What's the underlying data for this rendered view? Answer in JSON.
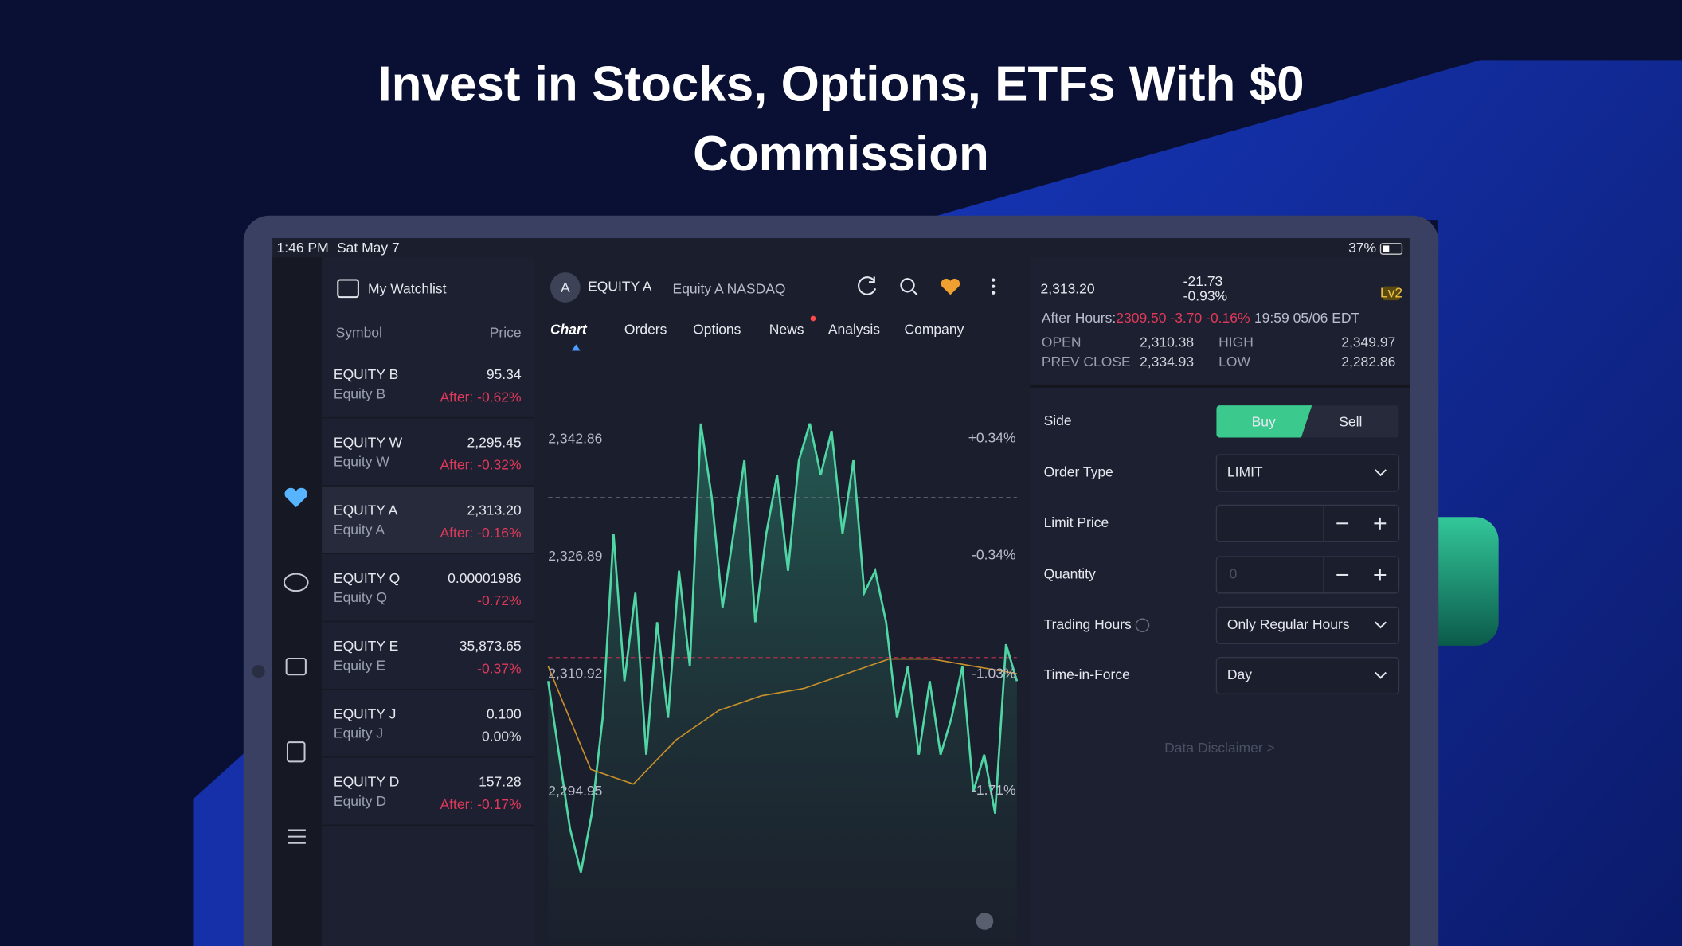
{
  "header": {
    "title": "Invest in Stocks, Options, ETFs With $0 Commission"
  },
  "status_bar": {
    "time": "1:46 PM",
    "date": "Sat May 7",
    "battery": "37%"
  },
  "watchlist": {
    "title": "My Watchlist",
    "columns": [
      "Symbol",
      "Price"
    ],
    "rows": [
      {
        "symbol": "EQUITY B",
        "name": "Equity B",
        "price": "95.34",
        "change": "After: -0.62%"
      },
      {
        "symbol": "EQUITY W",
        "name": "Equity W",
        "price": "2,295.45",
        "change": "After: -0.32%"
      },
      {
        "symbol": "EQUITY A",
        "name": "Equity A",
        "price": "2,313.20",
        "change": "After: -0.16%"
      },
      {
        "symbol": "EQUITY Q",
        "name": "Equity Q",
        "price": "0.00001986",
        "change": "-0.72%"
      },
      {
        "symbol": "EQUITY E",
        "name": "Equity E",
        "price": "35,873.65",
        "change": "-0.37%"
      },
      {
        "symbol": "EQUITY J",
        "name": "Equity J",
        "price": "0.100",
        "change": "0.00%"
      },
      {
        "symbol": "EQUITY D",
        "name": "Equity D",
        "price": "157.28",
        "change": "After: -0.17%"
      }
    ]
  },
  "quote_header": {
    "avatar": "A",
    "symbol": "EQUITY A",
    "exchange": "Equity A NASDAQ",
    "tabs": [
      "Chart",
      "Orders",
      "Options",
      "News",
      "Analysis",
      "Company"
    ]
  },
  "chart": {
    "type": "line",
    "series": [
      {
        "color": "#4fd6a4",
        "values": [
          2310,
          2300,
          2290,
          2284,
          2292,
          2305,
          2330,
          2310,
          2322,
          2300,
          2318,
          2305,
          2325,
          2312,
          2345,
          2335,
          2320,
          2330,
          2340,
          2318,
          2330,
          2338,
          2325,
          2340,
          2345,
          2338,
          2344,
          2330,
          2340,
          2322,
          2325,
          2318,
          2305,
          2312,
          2300,
          2310,
          2300,
          2305,
          2312,
          2295,
          2300,
          2292,
          2315,
          2310
        ]
      },
      {
        "color": "#c8902a",
        "values": [
          2312,
          2298,
          2296,
          2302,
          2306,
          2308,
          2309,
          2311,
          2313,
          2313,
          2312,
          2311
        ]
      }
    ],
    "ylim": [
      2274,
      2353
    ],
    "yticks": [
      {
        "value": 2342.86,
        "label": "2,342.86"
      },
      {
        "value": 2326.89,
        "label": "2,326.89"
      },
      {
        "value": 2310.92,
        "label": "2,310.92"
      },
      {
        "value": 2294.95,
        "label": "2,294.95"
      }
    ],
    "y2lim": [
      -2.61,
      0.77
    ],
    "y2ticks": [
      {
        "value": 0.34,
        "label": "+0.34%"
      },
      {
        "value": -0.34,
        "label": "-0.34%"
      },
      {
        "value": -1.03,
        "label": "-1.03%"
      },
      {
        "value": -1.71,
        "label": "-1.71%"
      }
    ],
    "reference_line": 2334.93,
    "last_price_line": 2313.2
  },
  "quote": {
    "price": "2,313.20",
    "change": "-21.73",
    "change_pct": "-0.93%",
    "badge": "Lv2",
    "after_hours_label": "After Hours:",
    "after_hours": "2309.50 -3.70 -0.16%",
    "after_hours_time": "19:59 05/06 EDT",
    "stats": [
      {
        "label": "OPEN",
        "value": "2,310.38"
      },
      {
        "label": "HIGH",
        "value": "2,349.97"
      },
      {
        "label": "PREV CLOSE",
        "value": "2,334.93"
      },
      {
        "label": "LOW",
        "value": "2,282.86"
      }
    ]
  },
  "order": {
    "labels": [
      "Side",
      "Order Type",
      "Limit Price",
      "Quantity",
      "Trading Hours",
      "Time-in-Force"
    ],
    "buy": "Buy",
    "sell": "Sell",
    "order_type": "LIMIT",
    "quantity_placeholder": "0",
    "trading_hours": "Only Regular Hours",
    "time_in_force": "Day",
    "disclaimer": "Data Disclaimer >"
  }
}
